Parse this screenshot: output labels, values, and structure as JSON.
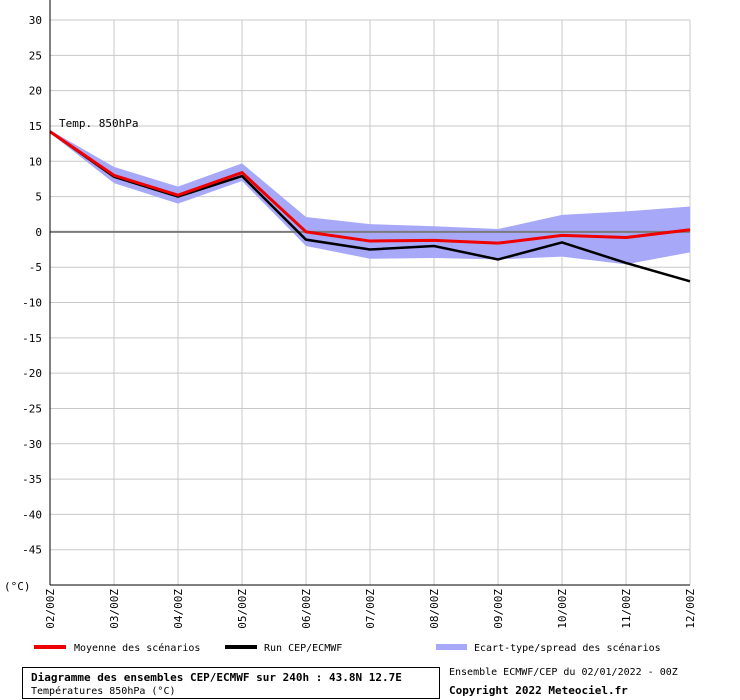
{
  "chart_data": {
    "type": "line",
    "title": "Diagramme des ensembles CEP/ECMWF sur 240h : 43.8N 12.7E",
    "subtitle": "Températures 850hPa (°C)",
    "ylabel": "(°C)",
    "annotation": "Temp. 850hPa",
    "ylim": [
      -50,
      30
    ],
    "yticks": [
      30,
      25,
      20,
      15,
      10,
      5,
      0,
      -5,
      -10,
      -15,
      -20,
      -25,
      -30,
      -35,
      -40,
      -45
    ],
    "categories": [
      "02/00Z",
      "03/00Z",
      "04/00Z",
      "05/00Z",
      "06/00Z",
      "07/00Z",
      "08/00Z",
      "09/00Z",
      "10/00Z",
      "11/00Z",
      "12/00Z"
    ],
    "grid": true,
    "legend_position": "bottom",
    "series": [
      {
        "name": "Moyenne des scénarios",
        "color": "#ee0000",
        "values": [
          14.2,
          8.0,
          5.2,
          8.4,
          0.0,
          -1.3,
          -1.2,
          -1.6,
          -0.5,
          -0.8,
          0.3
        ]
      },
      {
        "name": "Run CEP/ECMWF",
        "color": "#000000",
        "values": [
          14.2,
          7.8,
          5.0,
          7.9,
          -1.1,
          -2.5,
          -2.0,
          -3.9,
          -1.5,
          -4.4,
          -7.0
        ]
      },
      {
        "name": "Ecart-type/spread des scénarios",
        "color": "#a8a8f8",
        "upper": [
          14.4,
          9.2,
          6.4,
          9.7,
          2.1,
          1.1,
          0.8,
          0.4,
          2.4,
          2.9,
          3.6
        ],
        "lower": [
          14.0,
          6.9,
          4.0,
          7.2,
          -2.0,
          -3.8,
          -3.7,
          -3.9,
          -3.5,
          -4.6,
          -2.9
        ]
      }
    ]
  },
  "footer": {
    "run_info": "Ensemble ECMWF/CEP du 02/01/2022 - 00Z",
    "copyright": "Copyright 2022 Meteociel.fr"
  }
}
